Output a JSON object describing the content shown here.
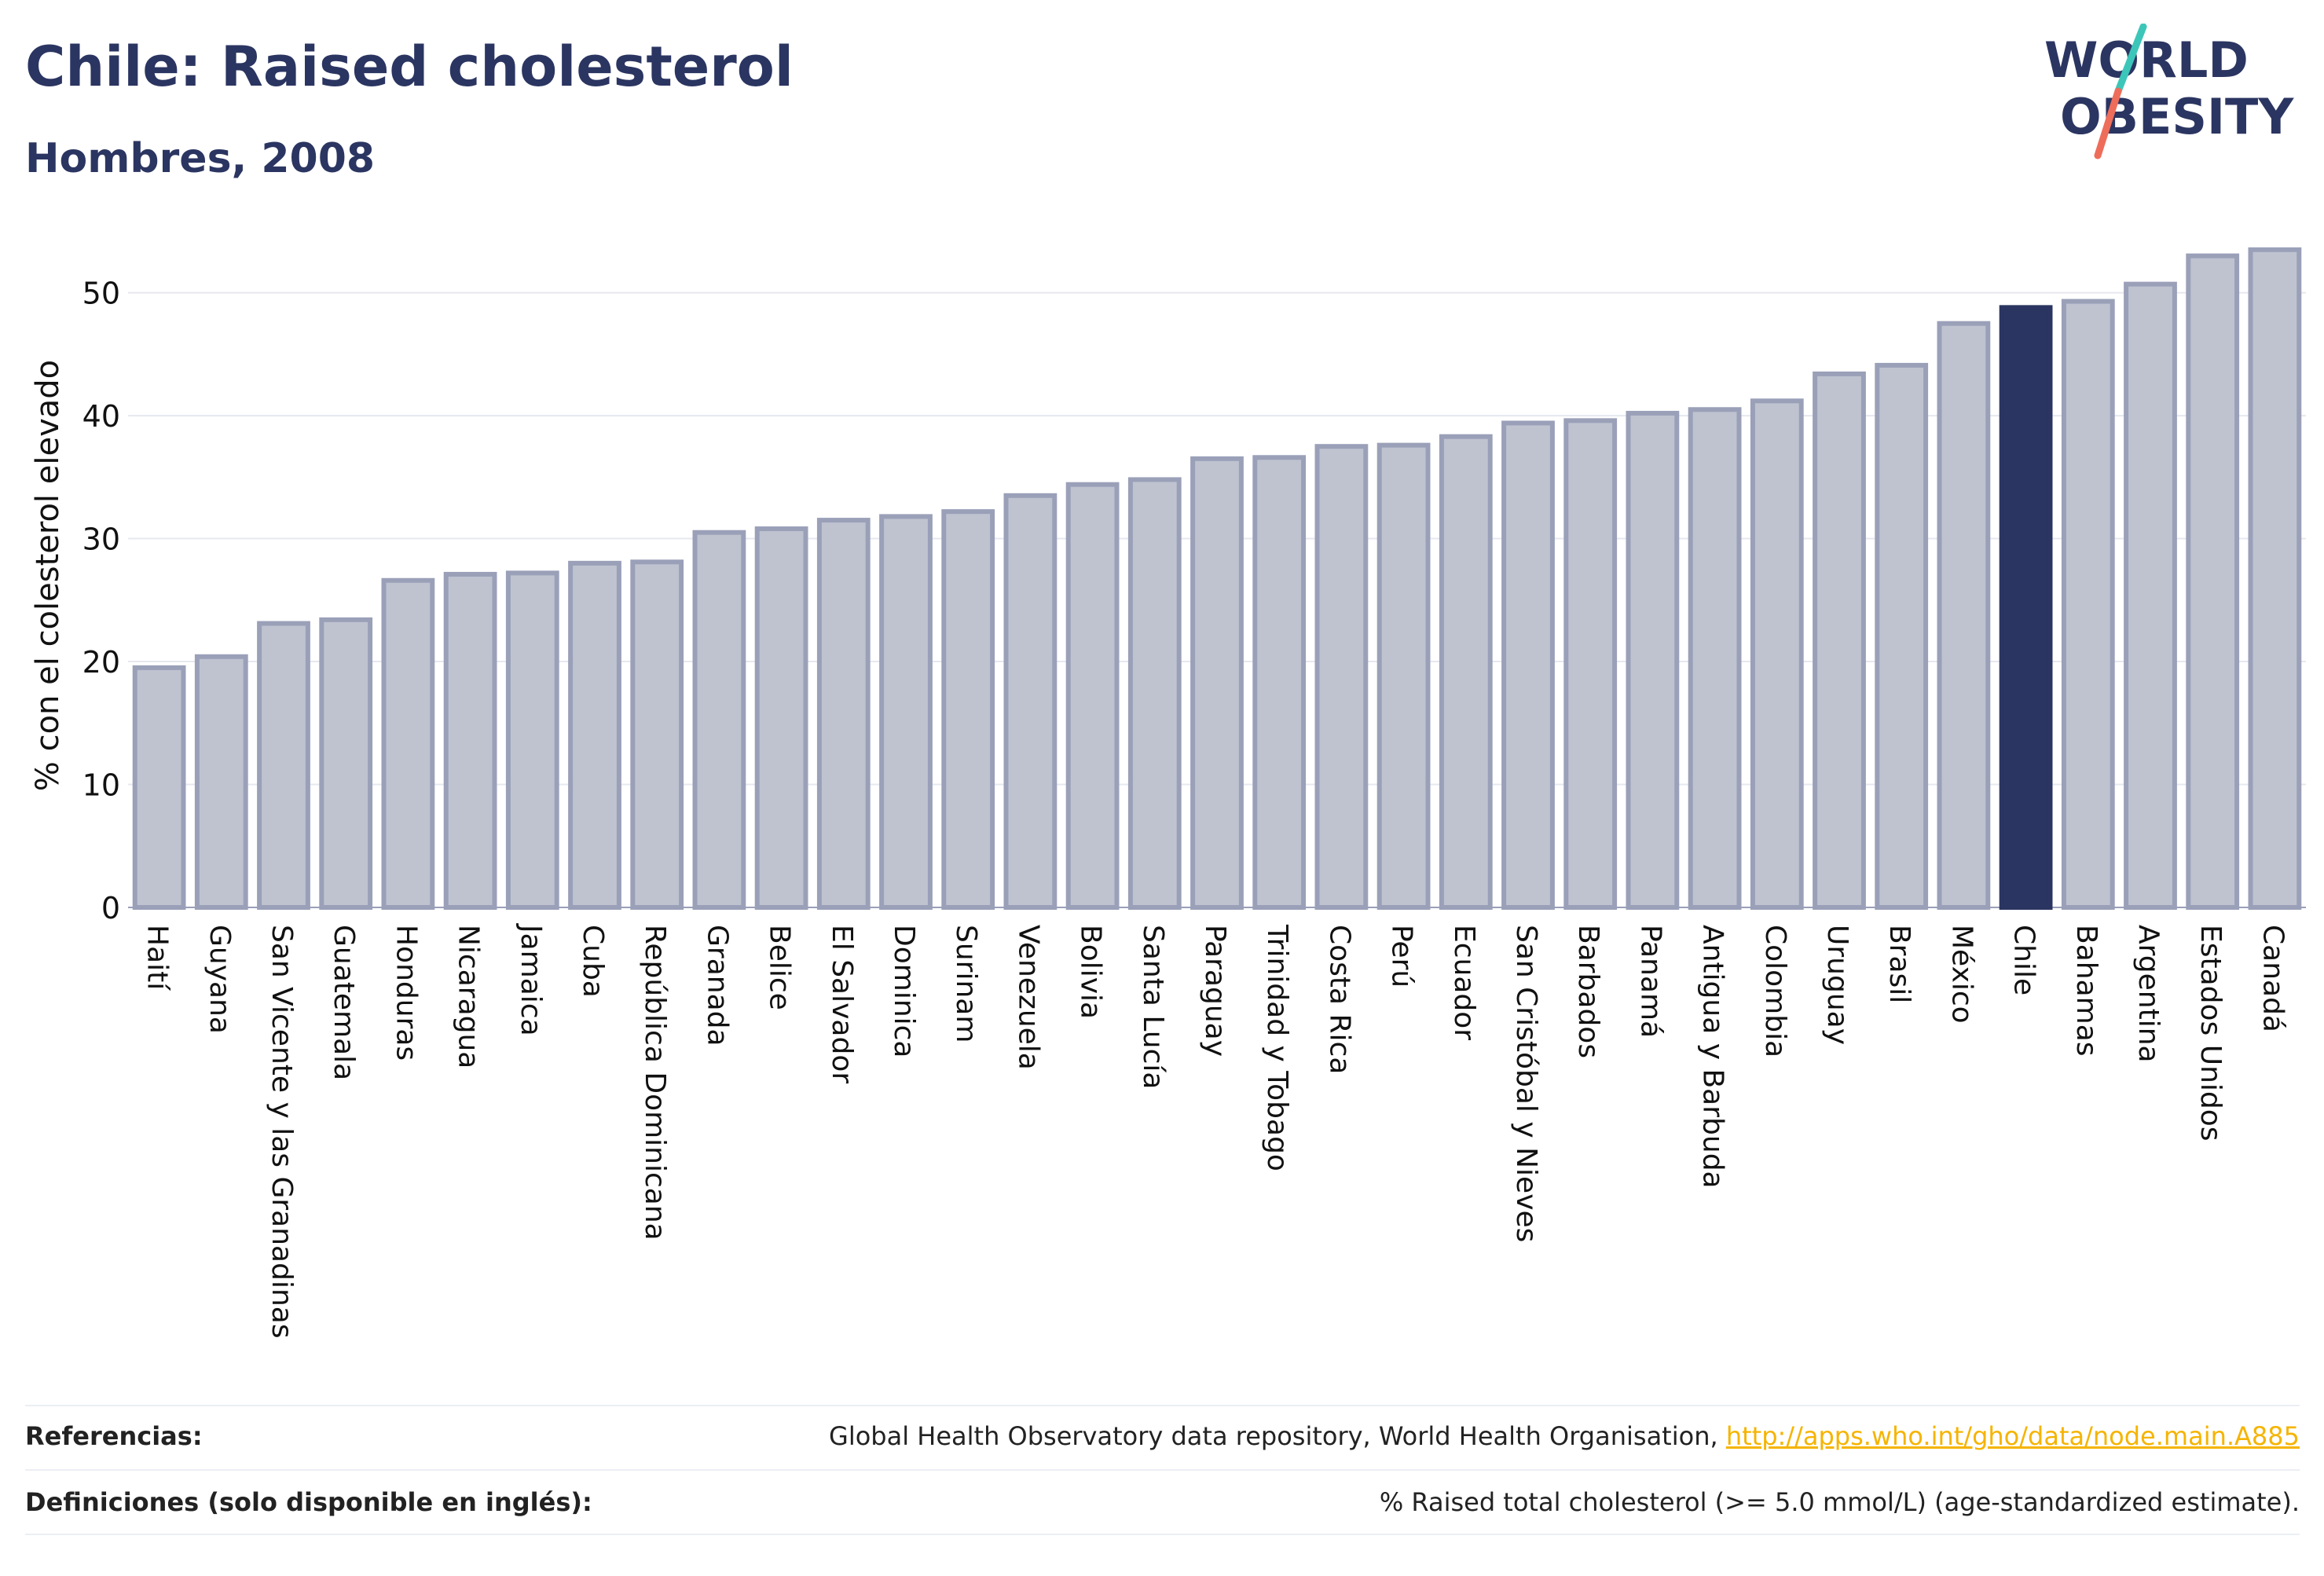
{
  "header": {
    "title": "Chile: Raised cholesterol",
    "subtitle": "Hombres, 2008"
  },
  "logo": {
    "line1": "WORLD",
    "line2": "OBESITY",
    "colors": {
      "text": "#2b3561",
      "slash_top": "#3cc6b9",
      "slash_bottom": "#ee6d5a"
    }
  },
  "colors": {
    "bar_fill": "#bfc3d0",
    "bar_stroke": "#9aa0b8",
    "highlight": "#2b3561",
    "grid": "#e6e8ef",
    "axis_text": "#111111"
  },
  "chart_data": {
    "type": "bar",
    "ylabel": "% con el colesterol elevado",
    "ylim": [
      0,
      54
    ],
    "yticks": [
      0,
      10,
      20,
      30,
      40,
      50
    ],
    "grid": true,
    "highlight": "Chile",
    "categories": [
      "Haití",
      "Guyana",
      "San Vicente y las Granadinas",
      "Guatemala",
      "Honduras",
      "Nicaragua",
      "Jamaica",
      "Cuba",
      "República Dominicana",
      "Granada",
      "Belice",
      "El Salvador",
      "Dominica",
      "Surinam",
      "Venezuela",
      "Bolivia",
      "Santa Lucía",
      "Paraguay",
      "Trinidad y Tobago",
      "Costa Rica",
      "Perú",
      "Ecuador",
      "San Cristóbal y Nieves",
      "Barbados",
      "Panamá",
      "Antigua y Barbuda",
      "Colombia",
      "Uruguay",
      "Brasil",
      "México",
      "Chile",
      "Bahamas",
      "Argentina",
      "Estados Unidos",
      "Canadá"
    ],
    "values": [
      19.5,
      20.4,
      23.1,
      23.4,
      26.6,
      27.1,
      27.2,
      28.0,
      28.1,
      30.5,
      30.8,
      31.5,
      31.8,
      32.2,
      33.5,
      34.4,
      34.8,
      36.5,
      36.6,
      37.5,
      37.6,
      38.3,
      39.4,
      39.6,
      40.2,
      40.5,
      41.2,
      43.4,
      44.1,
      47.5,
      48.8,
      49.3,
      50.7,
      53.0,
      53.5
    ]
  },
  "footer": {
    "ref_label": "Referencias:",
    "ref_text": "Global Health Observatory data repository, World Health Organisation, ",
    "ref_link": "http://apps.who.int/gho/data/node.main.A885",
    "def_label": "Definiciones (solo disponible en inglés):",
    "def_text": "% Raised total cholesterol (>= 5.0 mmol/L) (age-standardized estimate)."
  }
}
